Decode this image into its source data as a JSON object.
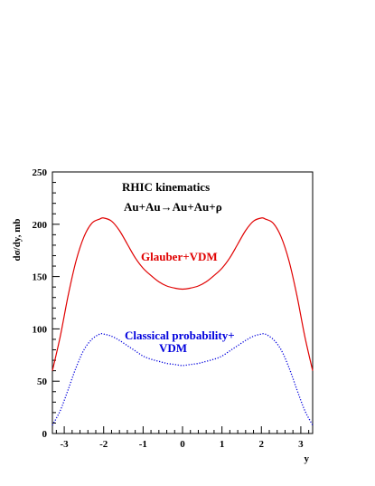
{
  "chart_data": {
    "type": "line",
    "ylabel": "dσ/dy, mb",
    "xlabel": "y",
    "xlim": [
      -3.3,
      3.3
    ],
    "ylim": [
      0,
      250
    ],
    "xticks": [
      -3,
      -2,
      -1,
      0,
      1,
      2,
      3
    ],
    "xtick_labels": [
      "-3",
      "-2",
      "-1",
      "0",
      "1",
      "2",
      "3"
    ],
    "yticks": [
      0,
      50,
      100,
      150,
      200,
      250
    ],
    "ytick_labels": [
      "0",
      "50",
      "100",
      "150",
      "200",
      "250"
    ],
    "grid": false,
    "annotations": {
      "kinematics": "RHIC kinematics",
      "reaction": "Au+Au→Au+Au+ρ",
      "glauber": "Glauber+VDM",
      "classical_line1": "Classical probability+",
      "classical_line2": "VDM"
    },
    "series": [
      {
        "color": "#e00000",
        "style": "solid",
        "x": [
          -3.3,
          -3.1,
          -2.9,
          -2.7,
          -2.5,
          -2.3,
          -2.1,
          -2.0,
          -1.8,
          -1.6,
          -1.4,
          -1.2,
          -1.0,
          -0.8,
          -0.6,
          -0.4,
          -0.2,
          0.0,
          0.2,
          0.4,
          0.6,
          0.8,
          1.0,
          1.2,
          1.4,
          1.6,
          1.8,
          2.0,
          2.1,
          2.3,
          2.5,
          2.7,
          2.9,
          3.1,
          3.3
        ],
        "y": [
          60,
          93,
          132,
          165,
          188,
          201,
          205,
          206,
          203,
          194,
          181,
          168,
          158,
          151,
          145,
          141,
          139,
          138,
          139,
          141,
          145,
          151,
          158,
          168,
          181,
          194,
          203,
          206,
          205,
          201,
          188,
          165,
          132,
          93,
          60
        ]
      },
      {
        "color": "#0000dd",
        "style": "dotted",
        "x": [
          -3.3,
          -3.1,
          -2.9,
          -2.7,
          -2.5,
          -2.3,
          -2.1,
          -2.0,
          -1.8,
          -1.6,
          -1.4,
          -1.2,
          -1.0,
          -0.8,
          -0.6,
          -0.4,
          -0.2,
          0.0,
          0.2,
          0.4,
          0.6,
          0.8,
          1.0,
          1.2,
          1.4,
          1.6,
          1.8,
          2.0,
          2.1,
          2.3,
          2.5,
          2.7,
          2.9,
          3.1,
          3.3
        ],
        "y": [
          8,
          22,
          42,
          63,
          80,
          90,
          95,
          95,
          93,
          89,
          84,
          79,
          74,
          71,
          69,
          67,
          66,
          65,
          66,
          67,
          69,
          71,
          74,
          79,
          84,
          89,
          93,
          95,
          95,
          90,
          80,
          63,
          42,
          22,
          8
        ]
      }
    ]
  }
}
